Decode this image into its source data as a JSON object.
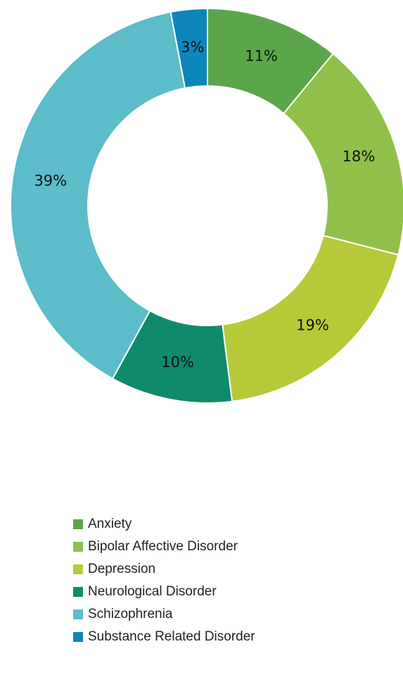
{
  "chart_data": {
    "type": "pie",
    "variant": "donut",
    "title": "",
    "legend_position": "bottom",
    "slices": [
      {
        "name": "Anxiety",
        "value": 11,
        "label": "11%",
        "color": "#5ba64a"
      },
      {
        "name": "Bipolar Affective Disorder",
        "value": 18,
        "label": "18%",
        "color": "#91c04a"
      },
      {
        "name": "Depression",
        "value": 19,
        "label": "19%",
        "color": "#b8c93a"
      },
      {
        "name": "Neurological Disorder",
        "value": 10,
        "label": "10%",
        "color": "#0f8b6c"
      },
      {
        "name": "Schizophrenia",
        "value": 39,
        "label": "39%",
        "color": "#5cbcc9"
      },
      {
        "name": "Substance Related Disorder",
        "value": 3,
        "label": "3%",
        "color": "#0d86bb"
      }
    ]
  }
}
